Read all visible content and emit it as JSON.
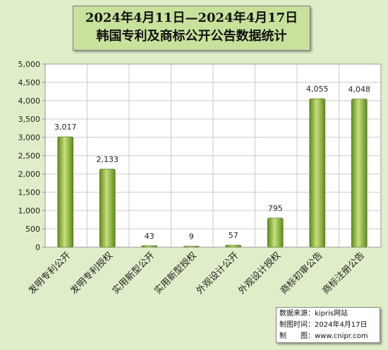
{
  "title": {
    "line1": "2024年4月11日—2024年4月17日",
    "line2": "韩国专利及商标公开公告数据统计"
  },
  "source": {
    "line1": "数据来源：kipris网站",
    "line2": "制图时间：2024年4月17日",
    "line3": "制　　图：www.cnipr.com"
  },
  "colors": {
    "background": "#dfeec9",
    "plot_background": "#ffffff",
    "bar_light": "#c6e07c",
    "bar_dark": "#5f8a1c",
    "title_background": "#c8e19b"
  },
  "chart_data": {
    "type": "bar",
    "categories": [
      "发明专利公开",
      "发明专利授权",
      "实用新型公开",
      "实用新型授权",
      "外观设计公开",
      "外观设计授权",
      "商标初审公告",
      "商标注册公告"
    ],
    "values": [
      3017,
      2133,
      43,
      9,
      57,
      795,
      4055,
      4048
    ],
    "value_labels": [
      "3,017",
      "2,133",
      "43",
      "9",
      "57",
      "795",
      "4,055",
      "4,048"
    ],
    "y_ticks": [
      "0",
      "500",
      "1,000",
      "1,500",
      "2,000",
      "2,500",
      "3,000",
      "3,500",
      "4,000",
      "4,500",
      "5,000"
    ],
    "ylim": [
      0,
      5000
    ],
    "grid": true,
    "title": "2024年4月11日—2024年4月17日 韩国专利及商标公开公告数据统计",
    "xlabel": "",
    "ylabel": ""
  }
}
